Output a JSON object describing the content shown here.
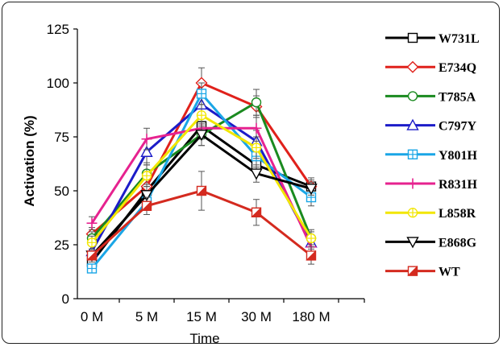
{
  "chart_data": {
    "type": "line",
    "xlabel": "Time",
    "ylabel": "Activation (%)",
    "categories": [
      "0 M",
      "5 M",
      "15 M",
      "30 M",
      "180 M"
    ],
    "ylim": [
      0,
      125
    ],
    "yticks": [
      0,
      25,
      50,
      75,
      100,
      125
    ],
    "yticks_labels": [
      "0",
      "25",
      "50",
      "75",
      "100",
      "125"
    ],
    "grid": false,
    "legend_position": "right",
    "series": [
      {
        "name": "W731L",
        "color": "#000000",
        "marker": "square",
        "values": [
          17,
          50,
          80,
          62,
          52
        ],
        "errors": [
          2,
          3,
          4,
          4,
          3
        ]
      },
      {
        "name": "E734Q",
        "color": "#e0211b",
        "marker": "diamond",
        "values": [
          30,
          52,
          100,
          89,
          52
        ],
        "errors": [
          3,
          4,
          7,
          5,
          4
        ]
      },
      {
        "name": "T785A",
        "color": "#1a8a1f",
        "marker": "circle",
        "values": [
          28,
          58,
          76,
          91,
          28
        ],
        "errors": [
          3,
          5,
          5,
          6,
          4
        ]
      },
      {
        "name": "C797Y",
        "color": "#1c1cc8",
        "marker": "triangle",
        "values": [
          22,
          68,
          90,
          73,
          26
        ],
        "errors": [
          3,
          6,
          6,
          5,
          3
        ]
      },
      {
        "name": "Y801H",
        "color": "#1aa6e6",
        "marker": "square-cross",
        "values": [
          14,
          45,
          95,
          66,
          47
        ],
        "errors": [
          2,
          4,
          5,
          5,
          4
        ]
      },
      {
        "name": "R831H",
        "color": "#e6228f",
        "marker": "plus",
        "values": [
          35,
          74,
          79,
          79,
          24
        ],
        "errors": [
          3,
          5,
          5,
          6,
          3
        ]
      },
      {
        "name": "L858R",
        "color": "#f2e600",
        "marker": "circle-cross",
        "values": [
          26,
          57,
          85,
          70,
          28
        ],
        "errors": [
          3,
          5,
          5,
          5,
          3
        ]
      },
      {
        "name": "E868G",
        "color": "#000000",
        "marker": "triangle-down",
        "values": [
          20,
          48,
          76,
          58,
          51
        ],
        "errors": [
          2,
          4,
          5,
          4,
          3
        ]
      },
      {
        "name": "WT",
        "color": "#d42a1f",
        "marker": "half-square",
        "values": [
          20,
          43,
          50,
          40,
          20
        ],
        "errors": [
          3,
          4,
          9,
          6,
          4
        ]
      }
    ]
  }
}
